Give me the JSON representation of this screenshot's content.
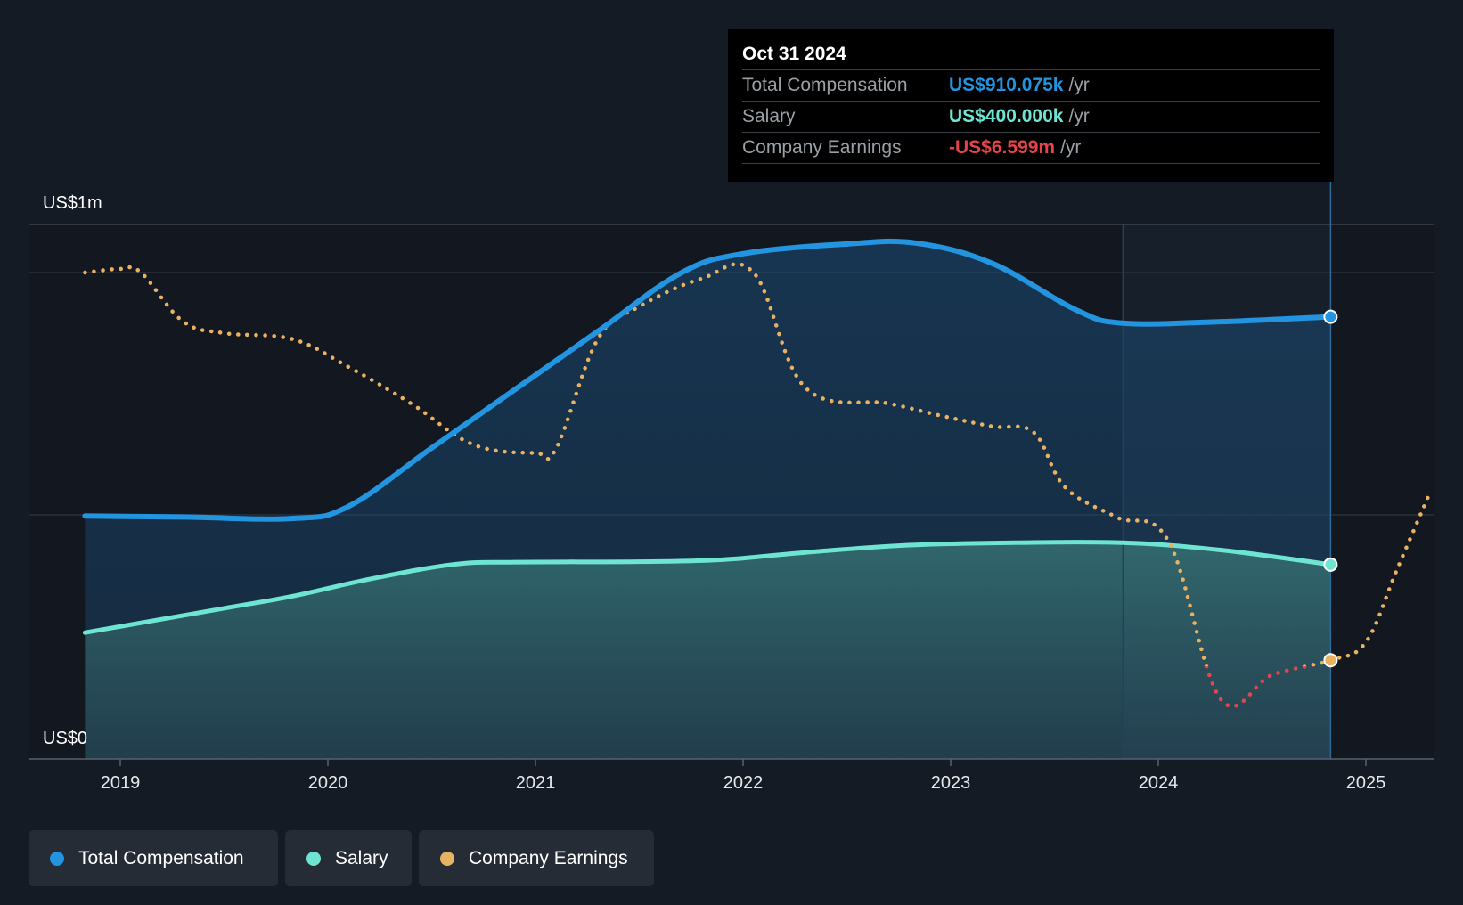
{
  "tooltip": {
    "date": "Oct 31 2024",
    "rows": [
      {
        "name": "Total Compensation",
        "value": "US$910.075k",
        "unit": "/yr"
      },
      {
        "name": "Salary",
        "value": "US$400.000k",
        "unit": "/yr"
      },
      {
        "name": "Company Earnings",
        "value": "-US$6.599m",
        "unit": "/yr"
      }
    ]
  },
  "legend": [
    {
      "label": "Total Compensation",
      "color": "#2394df"
    },
    {
      "label": "Salary",
      "color": "#6ee5d2"
    },
    {
      "label": "Company Earnings",
      "color": "#e9b262"
    }
  ],
  "chart_data": {
    "type": "area",
    "y_axis_labels": [
      "US$1m",
      "US$0"
    ],
    "ylim": [
      0,
      1100000
    ],
    "xlim": [
      2018.55,
      2025.3
    ],
    "x_ticks": [
      2019,
      2020,
      2021,
      2022,
      2023,
      2024,
      2025
    ],
    "highlight_start": 2023.83,
    "cursor_x": 2024.83,
    "colors": {
      "total": "#2394df",
      "salary": "#6ee5d2",
      "earnings_positive": "#e9b262",
      "earnings_negative": "#e5454a"
    },
    "series": [
      {
        "name": "Total Compensation",
        "x": [
          2018.83,
          2019.3,
          2019.83,
          2020.1,
          2020.5,
          2020.9,
          2021.3,
          2021.7,
          2022.0,
          2022.5,
          2022.83,
          2023.2,
          2023.6,
          2023.83,
          2024.3,
          2024.83
        ],
        "y": [
          500000,
          498000,
          495000,
          520000,
          640000,
          760000,
          880000,
          1000000,
          1040000,
          1060000,
          1062000,
          1020000,
          925000,
          897000,
          900000,
          910075
        ]
      },
      {
        "name": "Salary",
        "x": [
          2018.83,
          2019.5,
          2019.83,
          2020.2,
          2020.6,
          2020.9,
          2021.5,
          2021.9,
          2022.3,
          2022.8,
          2023.3,
          2023.83,
          2024.3,
          2024.83
        ],
        "y": [
          260000,
          310000,
          335000,
          370000,
          400000,
          405000,
          406000,
          410000,
          425000,
          440000,
          445000,
          445000,
          430000,
          400000
        ]
      },
      {
        "name": "Company Earnings",
        "negative_threshold": -4.25,
        "x": [
          2018.83,
          2019.0,
          2019.1,
          2019.3,
          2019.5,
          2019.83,
          2020.1,
          2020.4,
          2020.7,
          2021.0,
          2021.1,
          2021.3,
          2021.5,
          2021.8,
          2022.05,
          2022.3,
          2022.7,
          2022.95,
          2023.2,
          2023.4,
          2023.55,
          2023.8,
          2024.05,
          2024.3,
          2024.55,
          2024.83,
          2025.0,
          2025.15,
          2025.3
        ],
        "y": [
          -1.0,
          -0.97,
          -1.0,
          -1.4,
          -1.5,
          -1.55,
          -1.78,
          -2.08,
          -2.42,
          -2.49,
          -2.45,
          -1.55,
          -1.28,
          -1.05,
          -1.0,
          -1.95,
          -2.08,
          -2.18,
          -2.27,
          -2.32,
          -2.77,
          -3.02,
          -3.22,
          -4.52,
          -4.32,
          -4.2,
          -4.05,
          -3.45,
          -2.85
        ]
      }
    ]
  }
}
